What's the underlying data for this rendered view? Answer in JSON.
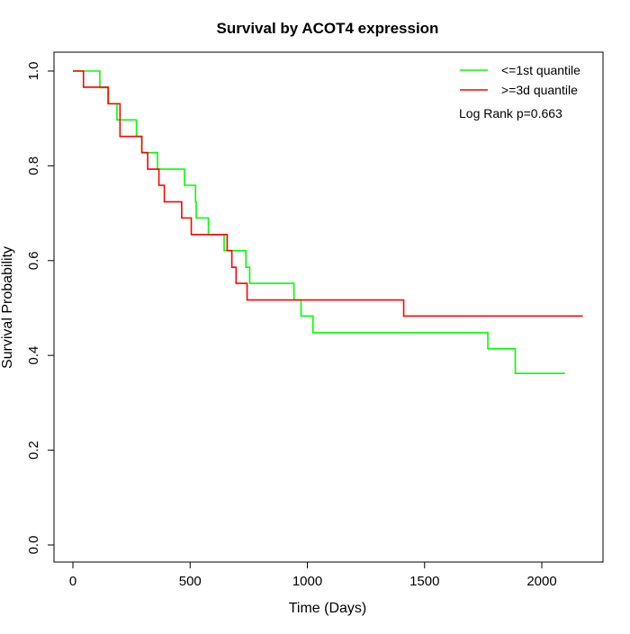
{
  "chart_data": {
    "type": "line",
    "step": true,
    "title": "Survival by ACOT4 expression",
    "xlabel": "Time (Days)",
    "ylabel": "Survival Probability",
    "xlim": [
      0,
      2200
    ],
    "ylim": [
      0,
      1
    ],
    "xticks": [
      "0",
      "500",
      "1000",
      "1500",
      "2000"
    ],
    "yticks": [
      "0.0",
      "0.2",
      "0.4",
      "0.6",
      "0.8",
      "1.0"
    ],
    "grid": false,
    "legend_position": "top-right",
    "annotation": "Log Rank p=0.663",
    "series": [
      {
        "name": "<=1st quantile",
        "color": "#00ff00",
        "x": [
          0,
          115,
          152,
          188,
          271,
          294,
          361,
          476,
          523,
          526,
          578,
          645,
          738,
          754,
          943,
          973,
          1024,
          1770,
          1887,
          2099
        ],
        "y": [
          1.0,
          0.965,
          0.931,
          0.897,
          0.862,
          0.828,
          0.793,
          0.759,
          0.724,
          0.69,
          0.655,
          0.621,
          0.586,
          0.552,
          0.517,
          0.483,
          0.448,
          0.414,
          0.362,
          0.362
        ]
      },
      {
        "name": ">=3d quantile",
        "color": "#ff0000",
        "x": [
          0,
          45,
          150,
          201,
          294,
          319,
          367,
          390,
          464,
          505,
          658,
          678,
          696,
          743,
          1411,
          2175
        ],
        "y": [
          1.0,
          0.966,
          0.931,
          0.862,
          0.828,
          0.793,
          0.759,
          0.724,
          0.69,
          0.655,
          0.621,
          0.586,
          0.552,
          0.517,
          0.483,
          0.483
        ]
      }
    ]
  }
}
